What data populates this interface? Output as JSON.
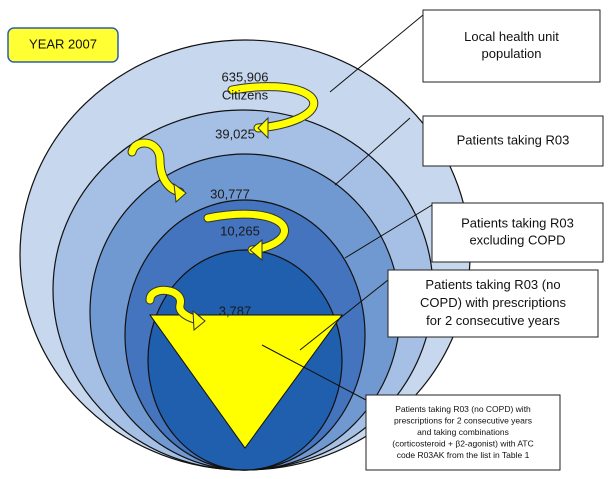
{
  "badge": "YEAR 2007",
  "levels": [
    {
      "count": "635,906",
      "unit": "Citizens",
      "label": [
        "Local health unit",
        "population"
      ]
    },
    {
      "count": "39,025",
      "label": [
        "Patients taking R03"
      ]
    },
    {
      "count": "30,777",
      "label": [
        "Patients taking R03",
        "excluding COPD"
      ]
    },
    {
      "count": "10,265",
      "label": [
        "Patients taking R03 (no",
        "COPD) with prescriptions",
        "for 2 consecutive years"
      ]
    },
    {
      "count": "3,787",
      "label": [
        "Patients taking R03 (no COPD) with",
        "prescriptions for 2 consecutive years",
        "and taking combinations",
        "(corticosteroid + β2-agonist) with ATC",
        "code R03AK from the list in Table 1"
      ]
    }
  ]
}
